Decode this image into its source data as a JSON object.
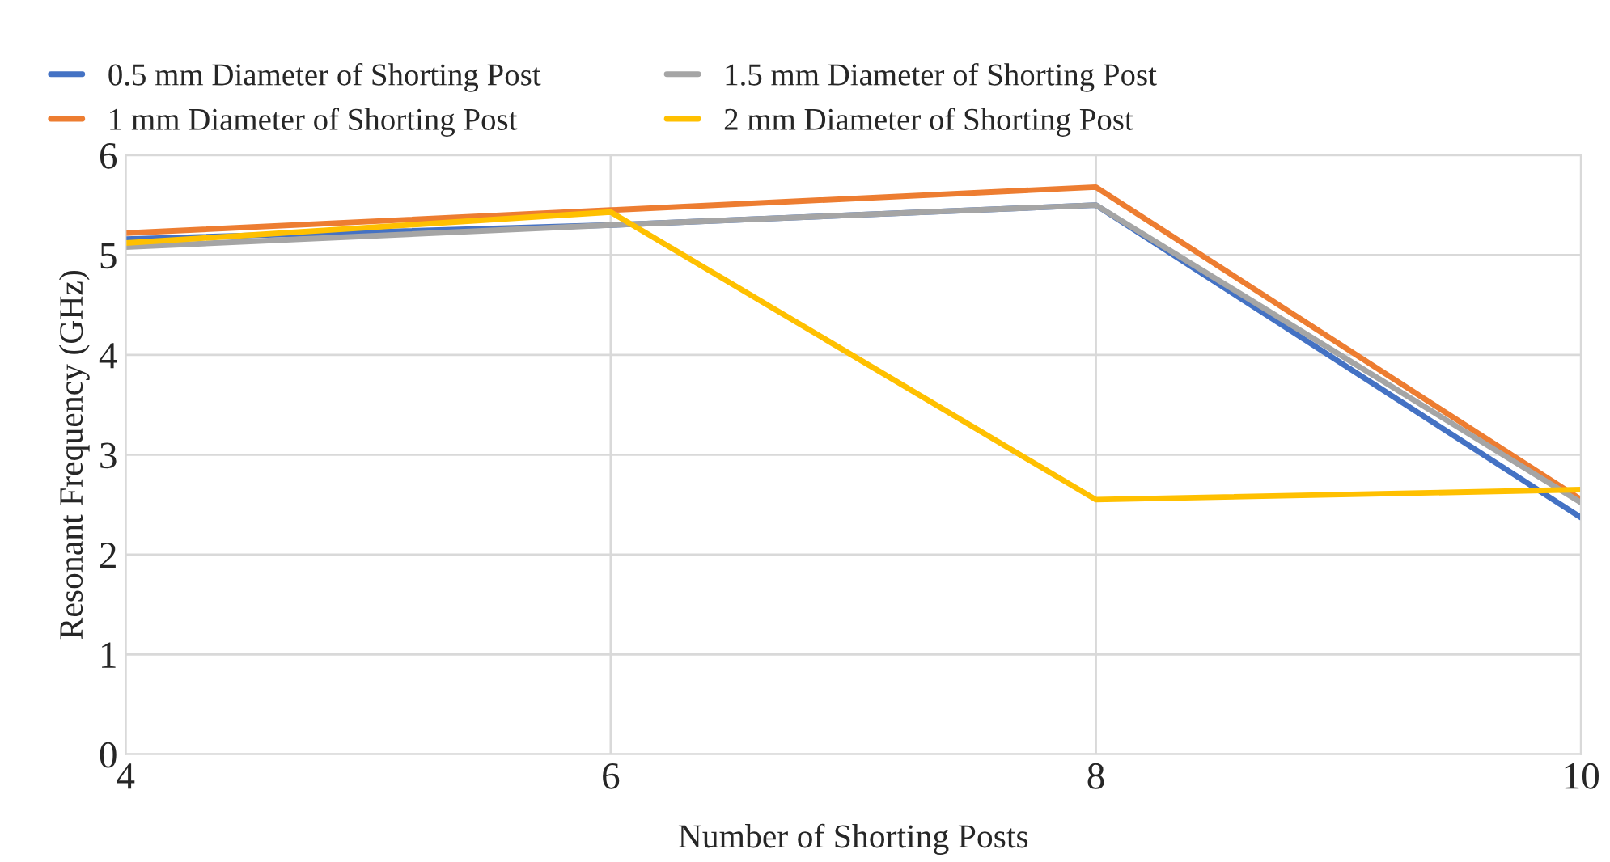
{
  "chart_data": {
    "type": "line",
    "xlabel": "Number of Shorting Posts",
    "ylabel": "Resonant Frequency (GHz)",
    "x": [
      4,
      6,
      8,
      10
    ],
    "xlim": [
      4,
      10
    ],
    "xticks": [
      4,
      6,
      8,
      10
    ],
    "ylim": [
      0,
      6
    ],
    "yticks": [
      0,
      1,
      2,
      3,
      4,
      5,
      6
    ],
    "grid": true,
    "legend": "top",
    "marker": "none",
    "line_style": "solid",
    "series": [
      {
        "name": "0.5 mm Diameter of Shorting Post",
        "color": "#4472c4",
        "values": [
          5.16,
          5.3,
          5.5,
          2.37
        ]
      },
      {
        "name": "1 mm Diameter of Shorting Post",
        "color": "#ed7d31",
        "values": [
          5.22,
          5.45,
          5.68,
          2.55
        ]
      },
      {
        "name": "1.5 mm Diameter of Shorting Post",
        "color": "#a5a5a5",
        "values": [
          5.08,
          5.3,
          5.5,
          2.52
        ]
      },
      {
        "name": "2 mm Diameter of Shorting Post",
        "color": "#ffc000",
        "values": [
          5.12,
          5.43,
          2.55,
          2.65
        ]
      }
    ]
  }
}
